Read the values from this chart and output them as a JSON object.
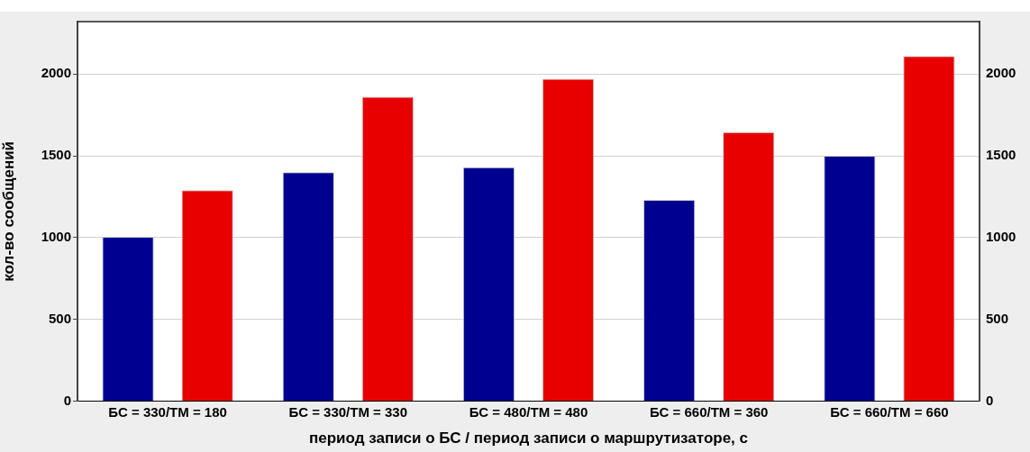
{
  "chart_data": {
    "type": "bar",
    "xlabel": "период записи о БС / период записи о маршрутизаторе, с",
    "ylabel": "кол-во сообщений",
    "categories": [
      "БС = 330/ТМ = 180",
      "БС = 330/ТМ = 330",
      "БС = 480/ТМ = 480",
      "БС = 660/ТМ = 360",
      "БС = 660/ТМ = 660"
    ],
    "series": [
      {
        "color": "#000090",
        "values": [
          1005,
          1400,
          1430,
          1230,
          1500
        ]
      },
      {
        "color": "#e80000",
        "values": [
          1290,
          1860,
          1970,
          1645,
          2110
        ]
      }
    ],
    "ylim": [
      0,
      2320
    ],
    "yticks": [
      0,
      500,
      1000,
      1500,
      2000
    ],
    "y2lim": [
      0,
      2320
    ],
    "y2ticks": [
      0,
      500,
      1000,
      1500,
      2000
    ],
    "grid": "y",
    "legend": false
  }
}
